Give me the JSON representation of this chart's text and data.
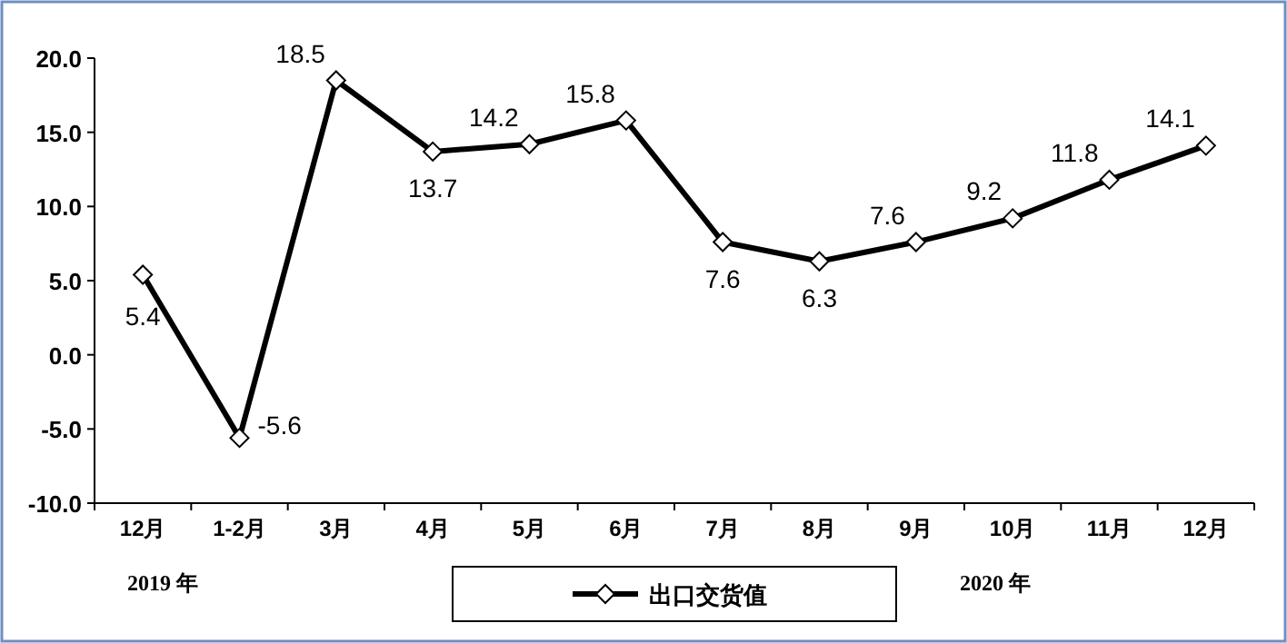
{
  "chart_data": {
    "type": "line",
    "categories": [
      "12月",
      "1-2月",
      "3月",
      "4月",
      "5月",
      "6月",
      "7月",
      "8月",
      "9月",
      "10月",
      "11月",
      "12月"
    ],
    "series": [
      {
        "name": "出口交货值",
        "color": "#000000",
        "values": [
          5.4,
          -5.6,
          18.5,
          13.7,
          14.2,
          15.8,
          7.6,
          6.3,
          7.6,
          9.2,
          11.8,
          14.1
        ]
      }
    ],
    "ylim": [
      -10,
      20
    ],
    "yticks": [
      {
        "value": -10,
        "label": "-10.0"
      },
      {
        "value": -5,
        "label": "-5.0"
      },
      {
        "value": 0,
        "label": "0.0"
      },
      {
        "value": 5,
        "label": "5.0"
      },
      {
        "value": 10,
        "label": "10.0"
      },
      {
        "value": 15,
        "label": "15.0"
      },
      {
        "value": 20,
        "label": "20.0"
      }
    ],
    "data_labels": true,
    "marker": "diamond",
    "legend": "bottom",
    "grid": false,
    "annotations": [
      "2019 年",
      "2020 年"
    ]
  }
}
